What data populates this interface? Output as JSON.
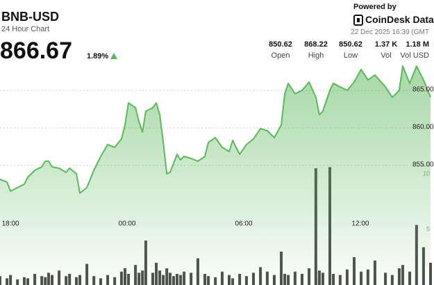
{
  "header": {
    "symbol": "BNB-USD",
    "period": "24 Hour Chart",
    "price": "866.67",
    "change": "1.89%",
    "powered_by": "Powered by",
    "brand": "CoinDesk Data",
    "timestamp": "22 Dec 2025 16:39 (GMT",
    "stats": [
      {
        "value": "850.62",
        "label": "Open"
      },
      {
        "value": "868.22",
        "label": "High"
      },
      {
        "value": "850.62",
        "label": "Low"
      },
      {
        "value": "1.37 K",
        "label": "Vol"
      },
      {
        "value": "1.18 M",
        "label": "Vol USD"
      }
    ]
  },
  "chart_data": {
    "type": "line",
    "x": [
      -0.54,
      -0.18,
      0,
      0.36,
      0.71,
      0.89,
      1.25,
      1.61,
      1.79,
      1.96,
      2.14,
      2.5,
      2.86,
      3.04,
      3.39,
      3.57,
      3.93,
      4.29,
      4.64,
      5,
      5.36,
      5.71,
      5.89,
      6.07,
      6.43,
      6.61,
      6.79,
      6.96,
      7.32,
      7.5,
      7.68,
      7.86,
      8.04,
      8.21,
      8.39,
      8.57,
      8.75,
      8.93,
      9.29,
      9.64,
      10,
      10.18,
      10.54,
      10.89,
      11.25,
      11.43,
      11.79,
      12.14,
      12.5,
      12.86,
      13.21,
      13.57,
      13.93,
      14.11,
      14.29,
      14.64,
      15,
      15.36,
      15.71,
      15.89,
      16.07,
      16.43,
      16.61,
      16.96,
      17.32,
      17.68,
      18.04,
      18.39,
      18.75,
      19.29,
      19.64,
      20,
      20.18,
      20.54,
      20.89,
      21.25,
      21.61
    ],
    "series": [
      {
        "color": "#5cb85c",
        "values": [
          853.15,
          852.78,
          851.57,
          852.04,
          852.5,
          853.43,
          854.35,
          854.81,
          855.56,
          855.56,
          854.81,
          854.63,
          854.07,
          854.63,
          853.89,
          851.3,
          852.04,
          854.35,
          856.2,
          857.78,
          857.41,
          858.52,
          860.37,
          863.33,
          862.69,
          860.83,
          859.44,
          862.22,
          862.69,
          863.33,
          861.76,
          858.06,
          853.89,
          854.07,
          855.28,
          856.48,
          855.74,
          856.2,
          855.93,
          855.56,
          856.2,
          858.06,
          858.7,
          857.41,
          856.85,
          858.33,
          856.48,
          857.78,
          858.52,
          859.91,
          859.63,
          858.7,
          860.37,
          864.54,
          865.93,
          864.54,
          865,
          866.11,
          864.07,
          861.76,
          862.22,
          865,
          865.93,
          865.46,
          865,
          866.11,
          867.78,
          866.39,
          867.04,
          865.46,
          864.07,
          865,
          868.24,
          865.93,
          868.24,
          866.39,
          864.07
        ]
      },
      {
        "color": "#4d4d4d",
        "axis": "y2",
        "values": [
          0.8,
          0.6,
          0.9,
          0.5,
          0.7,
          0.6,
          1.0,
          0.8,
          0.7,
          1.1,
          0.9,
          1.3,
          0.8,
          1.0,
          0.7,
          0.9,
          1.9,
          0.8,
          0.6,
          0.9,
          0.7,
          1.2,
          1.5,
          1.0,
          1.8,
          1.1,
          1.3,
          4.0,
          1.1,
          2.0,
          1.3,
          0.9,
          1.5,
          1.1,
          0.8,
          1.0,
          0.9,
          1.2,
          1.1,
          2.4,
          1.0,
          0.8,
          0.7,
          1.2,
          0.9,
          0.6,
          1.0,
          0.8,
          1.1,
          1.6,
          1.2,
          0.9,
          3.0,
          1.0,
          0.9,
          1.2,
          1.0,
          1.5,
          10.5,
          1.3,
          1.1,
          10.6,
          1.0,
          0.9,
          1.4,
          2.5,
          1.2,
          1.4,
          2.2,
          1.1,
          0.9,
          1.5,
          1.8,
          1.2,
          5.4,
          3.4,
          2.0
        ]
      }
    ],
    "xlim": [
      -0.54,
      21.61
    ],
    "xticks": [
      {
        "value": 0,
        "label": "18:00"
      },
      {
        "value": 6,
        "label": "00:00"
      },
      {
        "value": 12,
        "label": "06:00"
      },
      {
        "value": 18,
        "label": "12:00"
      }
    ],
    "ylim": [
      839.07,
      868.7
    ],
    "yticks": [
      {
        "value": 855,
        "label": "855.00"
      },
      {
        "value": 860,
        "label": "860.00"
      },
      {
        "value": 865,
        "label": "865.00"
      }
    ],
    "y2lim": [
      0,
      20
    ],
    "y2ticks": [
      5,
      10
    ],
    "grid": true
  }
}
